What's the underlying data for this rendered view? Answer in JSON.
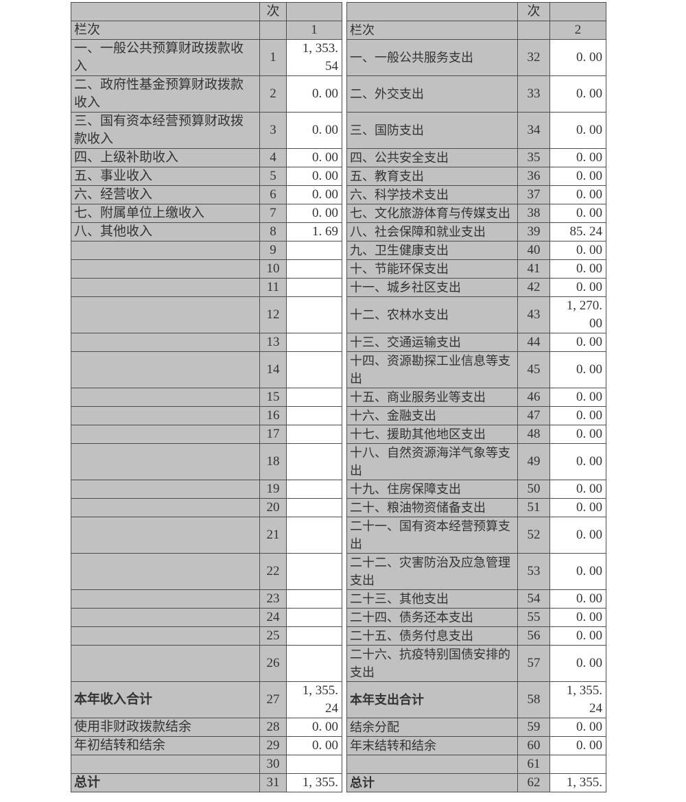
{
  "colors": {
    "cell_fill_grey": "#c1c1c1",
    "cell_fill_white": "#ffffff",
    "border": "#4d4d4d",
    "text": "#333333"
  },
  "table": {
    "header": {
      "row_num_title": "次",
      "lanci_label": "栏次",
      "left_col_index": "1",
      "right_col_index": "2"
    },
    "rows": [
      {
        "l": [
          "一、一般公共预算财政拨款收\n入",
          "1",
          "1, 353.\n54"
        ],
        "r": [
          "一、一般公共服务支出",
          "32",
          "0. 00"
        ],
        "em": ""
      },
      {
        "l": [
          "二、政府性基金预算财政拨款\n收入",
          "2",
          "0. 00"
        ],
        "r": [
          "二、外交支出",
          "33",
          "0. 00"
        ],
        "em": ""
      },
      {
        "l": [
          "三、国有资本经营预算财政拨\n款收入",
          "3",
          "0. 00"
        ],
        "r": [
          "三、国防支出",
          "34",
          "0. 00"
        ],
        "em": ""
      },
      {
        "l": [
          "四、上级补助收入",
          "4",
          "0. 00"
        ],
        "r": [
          "四、公共安全支出",
          "35",
          "0. 00"
        ],
        "em": ""
      },
      {
        "l": [
          "五、事业收入",
          "5",
          "0. 00"
        ],
        "r": [
          "五、教育支出",
          "36",
          "0. 00"
        ],
        "em": ""
      },
      {
        "l": [
          "六、经营收入",
          "6",
          "0. 00"
        ],
        "r": [
          "六、科学技术支出",
          "37",
          "0. 00"
        ],
        "em": ""
      },
      {
        "l": [
          "七、附属单位上缴收入",
          "7",
          "0. 00"
        ],
        "r": [
          "七、文化旅游体育与传媒支出",
          "38",
          "0. 00"
        ],
        "em": ""
      },
      {
        "l": [
          "八、其他收入",
          "8",
          "1. 69"
        ],
        "r": [
          "八、社会保障和就业支出",
          "39",
          "85. 24"
        ],
        "em": ""
      },
      {
        "l": [
          "",
          "9",
          ""
        ],
        "r": [
          "九、卫生健康支出",
          "40",
          "0. 00"
        ],
        "em": ""
      },
      {
        "l": [
          "",
          "10",
          ""
        ],
        "r": [
          "十、节能环保支出",
          "41",
          "0. 00"
        ],
        "em": ""
      },
      {
        "l": [
          "",
          "11",
          ""
        ],
        "r": [
          "十一、城乡社区支出",
          "42",
          "0. 00"
        ],
        "em": ""
      },
      {
        "l": [
          "",
          "12",
          ""
        ],
        "r": [
          "十二、农林水支出",
          "43",
          "1, 270.\n00"
        ],
        "em": ""
      },
      {
        "l": [
          "",
          "13",
          ""
        ],
        "r": [
          "十三、交通运输支出",
          "44",
          "0. 00"
        ],
        "em": ""
      },
      {
        "l": [
          "",
          "14",
          ""
        ],
        "r": [
          "十四、资源勘探工业信息等支\n出",
          "45",
          "0. 00"
        ],
        "em": ""
      },
      {
        "l": [
          "",
          "15",
          ""
        ],
        "r": [
          "十五、商业服务业等支出",
          "46",
          "0. 00"
        ],
        "em": ""
      },
      {
        "l": [
          "",
          "16",
          ""
        ],
        "r": [
          "十六、金融支出",
          "47",
          "0. 00"
        ],
        "em": ""
      },
      {
        "l": [
          "",
          "17",
          ""
        ],
        "r": [
          "十七、援助其他地区支出",
          "48",
          "0. 00"
        ],
        "em": ""
      },
      {
        "l": [
          "",
          "18",
          ""
        ],
        "r": [
          "十八、自然资源海洋气象等支\n出",
          "49",
          "0. 00"
        ],
        "em": ""
      },
      {
        "l": [
          "",
          "19",
          ""
        ],
        "r": [
          "十九、住房保障支出",
          "50",
          "0. 00"
        ],
        "em": ""
      },
      {
        "l": [
          "",
          "20",
          ""
        ],
        "r": [
          "二十、粮油物资储备支出",
          "51",
          "0. 00"
        ],
        "em": ""
      },
      {
        "l": [
          "",
          "21",
          ""
        ],
        "r": [
          "二十一、国有资本经营预算支\n出",
          "52",
          "0. 00"
        ],
        "em": ""
      },
      {
        "l": [
          "",
          "22",
          ""
        ],
        "r": [
          "二十二、灾害防治及应急管理\n支出",
          "53",
          "0. 00"
        ],
        "em": ""
      },
      {
        "l": [
          "",
          "23",
          ""
        ],
        "r": [
          "二十三、其他支出",
          "54",
          "0. 00"
        ],
        "em": ""
      },
      {
        "l": [
          "",
          "24",
          ""
        ],
        "r": [
          "二十四、债务还本支出",
          "55",
          "0. 00"
        ],
        "em": ""
      },
      {
        "l": [
          "",
          "25",
          ""
        ],
        "r": [
          "二十五、债务付息支出",
          "56",
          "0. 00"
        ],
        "em": ""
      },
      {
        "l": [
          "",
          "26",
          ""
        ],
        "r": [
          "二十六、抗疫特别国债安排的\n支出",
          "57",
          "0. 00"
        ],
        "em": ""
      },
      {
        "l": [
          "本年收入合计",
          "27",
          "1, 355.\n24"
        ],
        "r": [
          "本年支出合计",
          "58",
          "1, 355.\n24"
        ],
        "em": "total-center"
      },
      {
        "l": [
          "使用非财政拨款结余",
          "28",
          "0. 00"
        ],
        "r": [
          "结余分配",
          "59",
          "0. 00"
        ],
        "em": ""
      },
      {
        "l": [
          "年初结转和结余",
          "29",
          "0. 00"
        ],
        "r": [
          "年末结转和结余",
          "60",
          "0. 00"
        ],
        "em": ""
      },
      {
        "l": [
          "",
          "30",
          ""
        ],
        "r": [
          "",
          "61",
          ""
        ],
        "em": ""
      },
      {
        "l": [
          "总计",
          "31",
          "1, 355."
        ],
        "r": [
          "总计",
          "62",
          "1, 355."
        ],
        "em": "total-left"
      }
    ]
  }
}
